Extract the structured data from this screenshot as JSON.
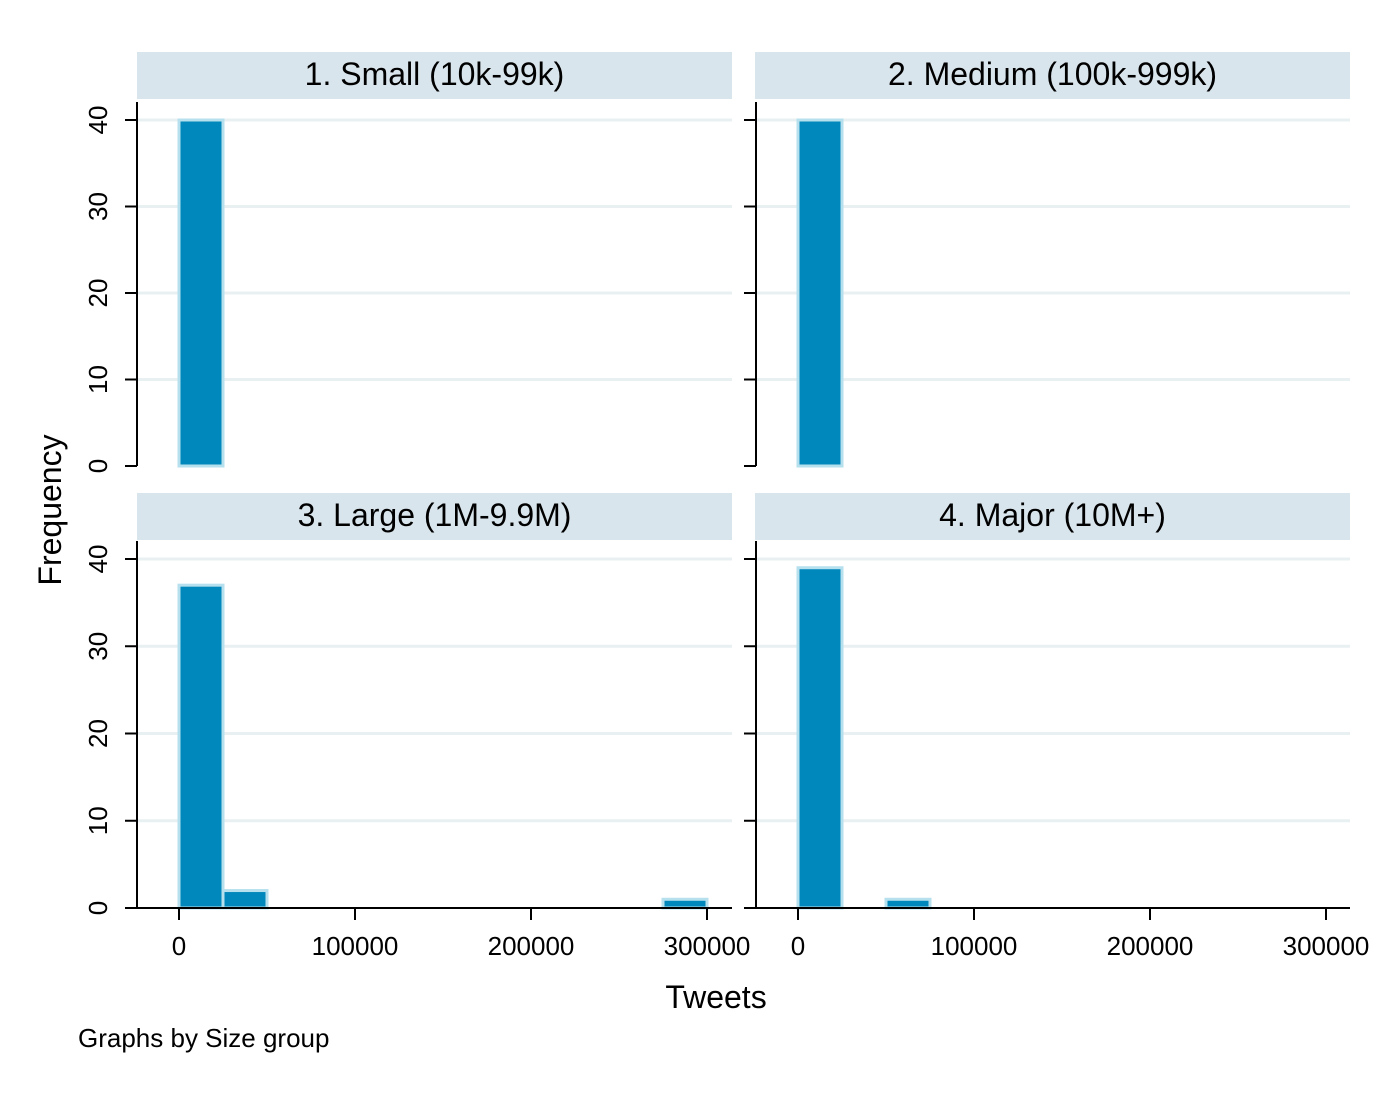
{
  "chart_data": {
    "type": "bar",
    "subtype": "histogram",
    "xlabel": "Tweets",
    "ylabel": "Frequency",
    "note": "Graphs by Size group",
    "xlim": [
      0,
      300000
    ],
    "ylim": [
      0,
      40
    ],
    "x_ticks": [
      0,
      100000,
      200000,
      300000
    ],
    "x_tick_labels": [
      "0",
      "100000",
      "200000",
      "300000"
    ],
    "y_ticks": [
      0,
      10,
      20,
      30,
      40
    ],
    "y_tick_labels": [
      "0",
      "10",
      "20",
      "30",
      "40"
    ],
    "grid": true,
    "bin_width": 25000,
    "colors": {
      "bar_fill": "#0087bb",
      "bar_edge": "#b7e0ee",
      "strip": "#d9e5ec",
      "grid": "#e8f0f2",
      "axis": "#000000"
    },
    "panels": [
      {
        "title": "1. Small (10k-99k)",
        "bins": [
          {
            "start": 0,
            "end": 25000,
            "frequency": 40
          }
        ]
      },
      {
        "title": "2. Medium (100k-999k)",
        "bins": [
          {
            "start": 0,
            "end": 25000,
            "frequency": 40
          }
        ]
      },
      {
        "title": "3. Large (1M-9.9M)",
        "bins": [
          {
            "start": 0,
            "end": 25000,
            "frequency": 37
          },
          {
            "start": 25000,
            "end": 50000,
            "frequency": 2
          },
          {
            "start": 275000,
            "end": 300000,
            "frequency": 1
          }
        ]
      },
      {
        "title": "4. Major (10M+)",
        "bins": [
          {
            "start": 0,
            "end": 25000,
            "frequency": 39
          },
          {
            "start": 50000,
            "end": 75000,
            "frequency": 1
          }
        ]
      }
    ]
  }
}
